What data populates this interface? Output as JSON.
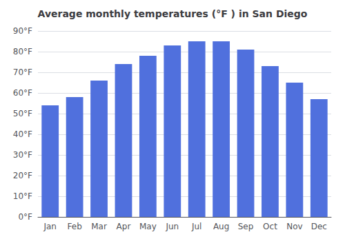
{
  "chart_data": {
    "type": "bar",
    "title": "Average monthly temperatures (°F ) in San Diego",
    "categories": [
      "Jan",
      "Feb",
      "Mar",
      "Apr",
      "May",
      "Jun",
      "Jul",
      "Aug",
      "Sep",
      "Oct",
      "Nov",
      "Dec"
    ],
    "values": [
      54,
      58,
      66,
      74,
      78,
      83,
      85,
      85,
      81,
      73,
      65,
      57
    ],
    "ylim": [
      0,
      90
    ],
    "yticks": [
      {
        "value": 0,
        "label": "0°F"
      },
      {
        "value": 10,
        "label": "10°F"
      },
      {
        "value": 20,
        "label": "20°F"
      },
      {
        "value": 30,
        "label": "30°F"
      },
      {
        "value": 40,
        "label": "40°F"
      },
      {
        "value": 50,
        "label": "50°F"
      },
      {
        "value": 60,
        "label": "60°F"
      },
      {
        "value": 70,
        "label": "70°F"
      },
      {
        "value": 80,
        "label": "80°F"
      },
      {
        "value": 90,
        "label": "90°F"
      }
    ],
    "grid": true
  }
}
